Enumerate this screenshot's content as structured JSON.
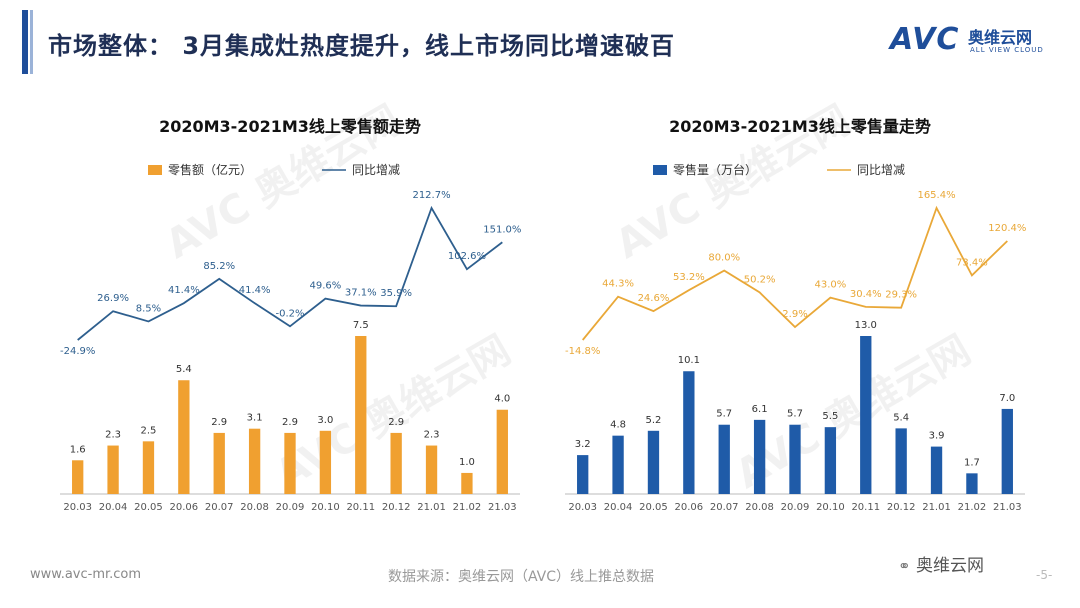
{
  "header": {
    "title": "市场整体： 3月集成灶热度提升，线上市场同比增速破百"
  },
  "logo": {
    "mark": "AVC",
    "cn_name": "奥维云网",
    "en_name": "ALL VIEW CLOUD"
  },
  "watermark_text": "AVC 奥维云网",
  "colors": {
    "orange": "#F0A030",
    "blue_bar": "#1F5BA8",
    "blue_line": "#2E5F8E",
    "orange_line": "#E9A838",
    "title_blue": "#1f4e9a"
  },
  "chart_data": [
    {
      "type": "bar",
      "title": "2020M3-2021M3线上零售额走势",
      "categories": [
        "20.03",
        "20.04",
        "20.05",
        "20.06",
        "20.07",
        "20.08",
        "20.09",
        "20.10",
        "20.11",
        "20.12",
        "21.01",
        "21.02",
        "21.03"
      ],
      "series": [
        {
          "name": "零售额（亿元）",
          "kind": "bar",
          "color": "#F0A030",
          "values": [
            1.6,
            2.3,
            2.5,
            5.4,
            2.9,
            3.1,
            2.9,
            3.0,
            7.5,
            2.9,
            2.3,
            1.0,
            4.0
          ],
          "labels": [
            "1.6",
            "2.3",
            "2.5",
            "5.4",
            "2.9",
            "3.1",
            "2.9",
            "3.0",
            "7.5",
            "2.9",
            "2.3",
            "1.0",
            "4.0"
          ]
        },
        {
          "name": "同比增减",
          "kind": "line",
          "color": "#2E5F8E",
          "values": [
            -24.9,
            26.9,
            8.5,
            41.4,
            85.2,
            41.4,
            -0.2,
            49.6,
            37.1,
            35.9,
            212.7,
            102.6,
            151.0
          ],
          "labels": [
            "-24.9%",
            "26.9%",
            "8.5%",
            "41.4%",
            "85.2%",
            "41.4%",
            "-0.2%",
            "49.6%",
            "37.1%",
            "35.9%",
            "212.7%",
            "102.6%",
            "151.0%"
          ]
        }
      ],
      "legend_position": "top"
    },
    {
      "type": "bar",
      "title": "2020M3-2021M3线上零售量走势",
      "categories": [
        "20.03",
        "20.04",
        "20.05",
        "20.06",
        "20.07",
        "20.08",
        "20.09",
        "20.10",
        "20.11",
        "20.12",
        "21.01",
        "21.02",
        "21.03"
      ],
      "series": [
        {
          "name": "零售量（万台）",
          "kind": "bar",
          "color": "#1F5BA8",
          "values": [
            3.2,
            4.8,
            5.2,
            10.1,
            5.7,
            6.1,
            5.7,
            5.5,
            13.0,
            5.4,
            3.9,
            1.7,
            7.0
          ],
          "labels": [
            "3.2",
            "4.8",
            "5.2",
            "10.1",
            "5.7",
            "6.1",
            "5.7",
            "5.5",
            "13.0",
            "5.4",
            "3.9",
            "1.7",
            "7.0"
          ]
        },
        {
          "name": "同比增减",
          "kind": "line",
          "color": "#E9A838",
          "values": [
            -14.8,
            44.3,
            24.6,
            53.2,
            80.0,
            50.2,
            2.9,
            43.0,
            30.4,
            29.3,
            165.4,
            73.4,
            120.4
          ],
          "labels": [
            "-14.8%",
            "44.3%",
            "24.6%",
            "53.2%",
            "80.0%",
            "50.2%",
            "2.9%",
            "43.0%",
            "30.4%",
            "29.3%",
            "165.4%",
            "73.4%",
            "120.4%"
          ]
        }
      ],
      "legend_position": "top"
    }
  ],
  "footer": {
    "url": "www.avc-mr.com",
    "source": "数据来源：奥维云网（AVC）线上推总数据",
    "wechat": "奥维云网",
    "page": "-5-"
  }
}
